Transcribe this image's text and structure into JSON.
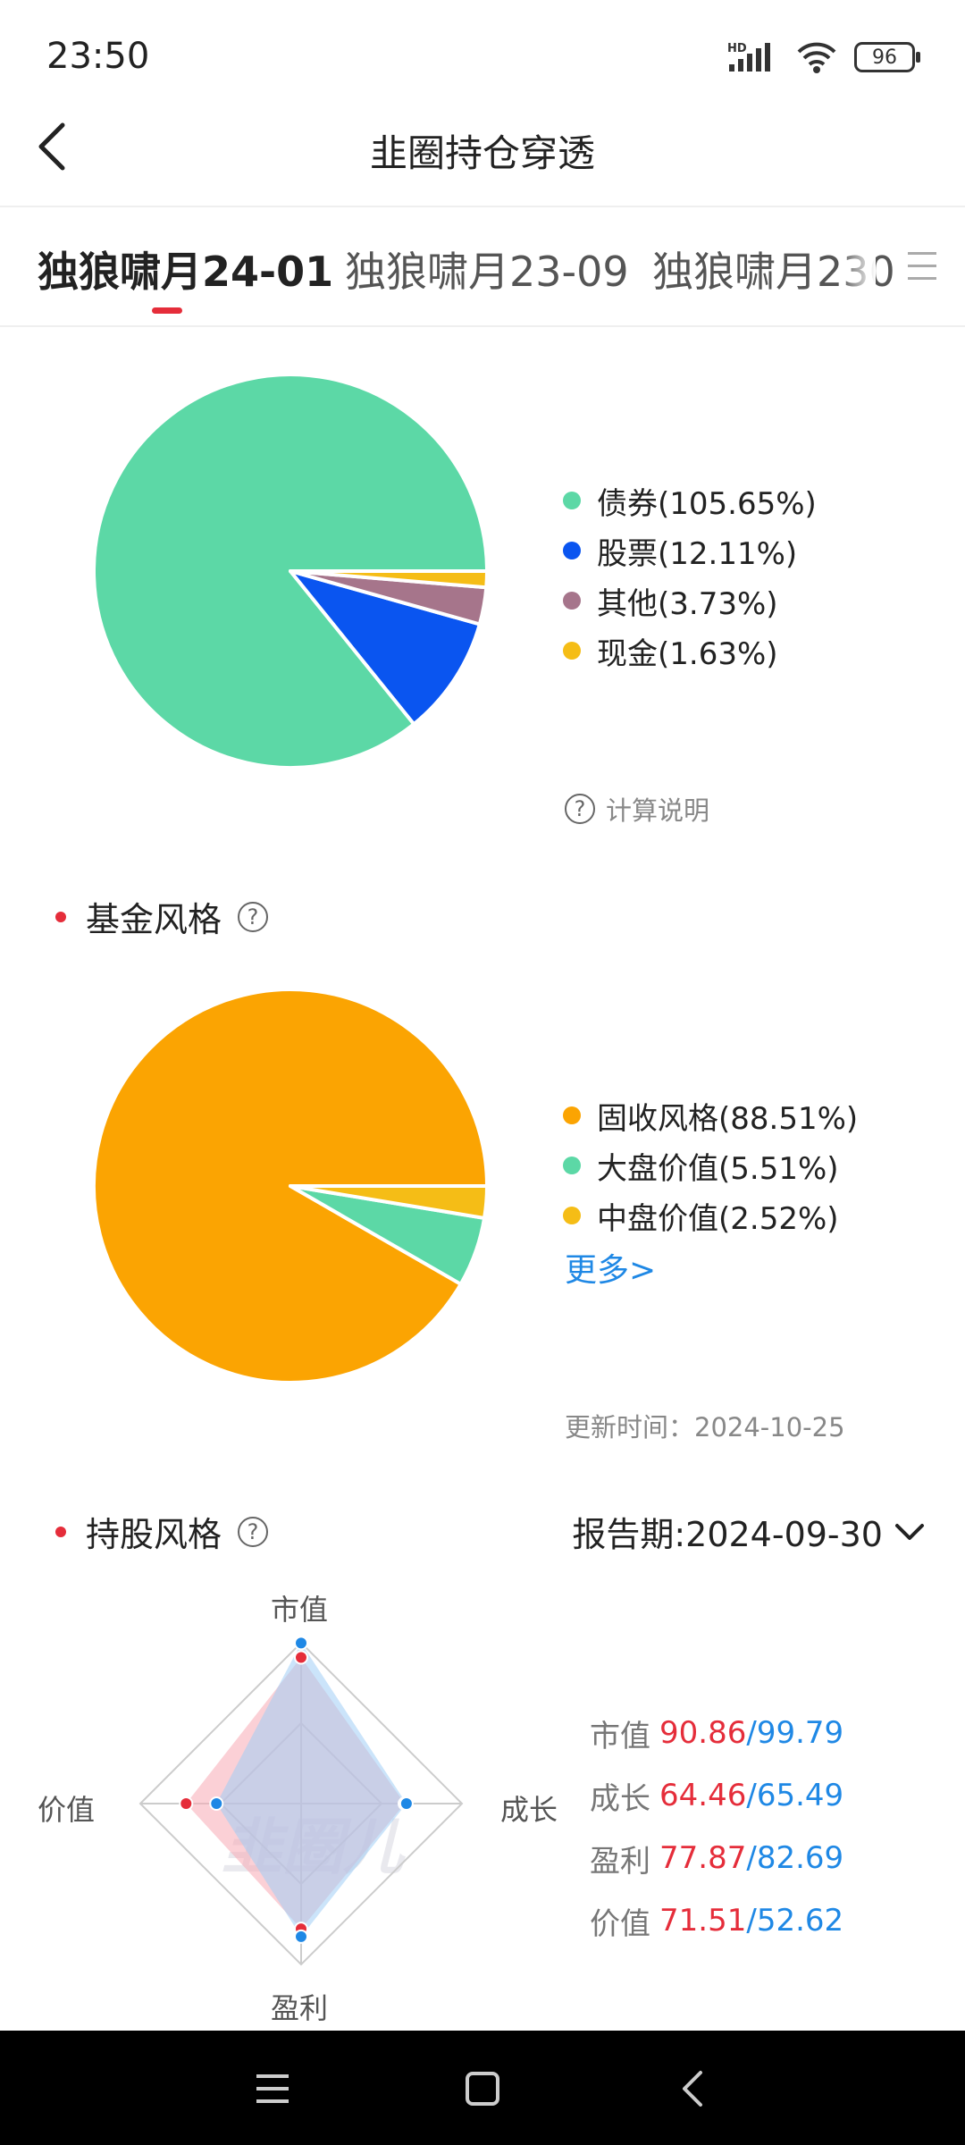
{
  "status_bar": {
    "time": "23:50",
    "network": "HD",
    "battery": "96"
  },
  "header": {
    "title": "韭圈持仓穿透"
  },
  "tabs": [
    {
      "label": "独狼啸月24-01",
      "active": true
    },
    {
      "label": "独狼啸月23-09",
      "active": false
    },
    {
      "label": "独狼啸月230",
      "active": false
    }
  ],
  "asset_allocation": {
    "legend": [
      {
        "label": "债券(105.65%)",
        "color": "#5cd8a6"
      },
      {
        "label": "股票(12.11%)",
        "color": "#0a55f0"
      },
      {
        "label": "其他(3.73%)",
        "color": "#a6758b"
      },
      {
        "label": "现金(1.63%)",
        "color": "#f5bd16"
      }
    ],
    "note": "计算说明"
  },
  "fund_style": {
    "title": "基金风格",
    "legend": [
      {
        "label": "固收风格(88.51%)",
        "color": "#fba402"
      },
      {
        "label": "大盘价值(5.51%)",
        "color": "#5cd8a6"
      },
      {
        "label": "中盘价值(2.52%)",
        "color": "#f5bd16"
      }
    ],
    "more": "更多>",
    "update_time": "更新时间：2024-10-25"
  },
  "holding_style": {
    "title": "持股风格",
    "report_period": "报告期:2024-09-30",
    "radar_labels": {
      "top": "市值",
      "right": "成长",
      "bottom": "盈利",
      "left": "价值"
    },
    "metrics": [
      {
        "label": "市值",
        "red": "90.86",
        "sep": "/",
        "blue": "99.79"
      },
      {
        "label": "成长",
        "red": "64.46",
        "sep": "/",
        "blue": "65.49"
      },
      {
        "label": "盈利",
        "red": "77.87",
        "sep": "/",
        "blue": "82.69"
      },
      {
        "label": "价值",
        "red": "71.51",
        "sep": "/",
        "blue": "52.62"
      }
    ],
    "watermark": "韭圈儿"
  },
  "chart_data": [
    {
      "type": "pie",
      "categories": [
        "债券",
        "股票",
        "其他",
        "现金"
      ],
      "values": [
        105.65,
        12.11,
        3.73,
        1.63
      ],
      "colors": [
        "#5cd8a6",
        "#0a55f0",
        "#a6758b",
        "#f5bd16"
      ]
    },
    {
      "type": "pie",
      "categories": [
        "固收风格",
        "大盘价值",
        "中盘价值"
      ],
      "values": [
        88.51,
        5.51,
        2.52
      ],
      "colors": [
        "#fba402",
        "#5cd8a6",
        "#f5bd16"
      ]
    },
    {
      "type": "radar",
      "axes": [
        "市值",
        "成长",
        "盈利",
        "价值"
      ],
      "series": [
        {
          "values": [
            90.86,
            64.46,
            77.87,
            71.51
          ],
          "color": "#e52d3a"
        },
        {
          "values": [
            99.79,
            65.49,
            82.69,
            52.62
          ],
          "color": "#1f88e5"
        }
      ],
      "max": 100
    }
  ]
}
